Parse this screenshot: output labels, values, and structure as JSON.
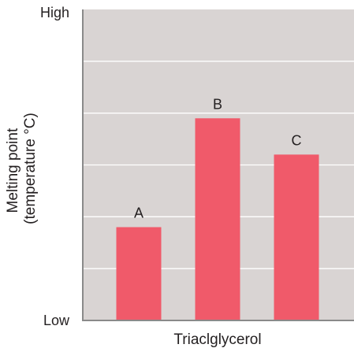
{
  "chart_data": {
    "type": "bar",
    "xlabel": "Triaclglycerol",
    "ylabel_lines": [
      "Melting point",
      "(temperature °C)"
    ],
    "y_tick_labels": {
      "top": "High",
      "bottom": "Low"
    },
    "categories": [
      "A",
      "B",
      "C"
    ],
    "values": [
      1.8,
      3.9,
      3.2
    ],
    "ylim": [
      0,
      6
    ],
    "grid": true,
    "legend": "none",
    "colors": {
      "bar": "#f05a6a",
      "plot_background": "#d9d4d3",
      "grid": "#ffffff",
      "axis": "#8a8a8a"
    }
  }
}
